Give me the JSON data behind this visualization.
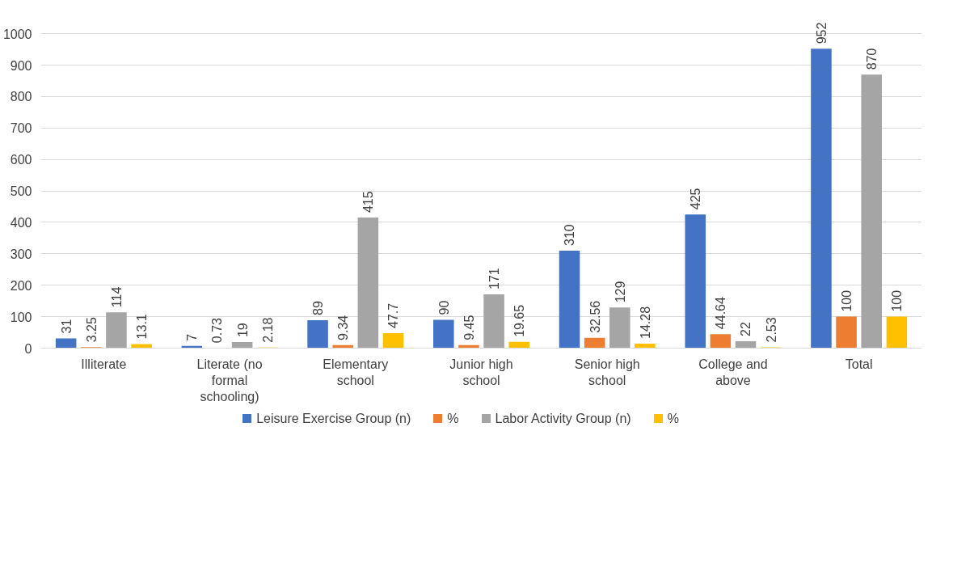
{
  "chart_data": {
    "type": "bar",
    "categories": [
      "Illiterate",
      "Literate (no formal schooling)",
      "Elementary school",
      "Junior high school",
      "Senior high school",
      "College and above",
      "Total"
    ],
    "series": [
      {
        "name": "Leisure Exercise Group (n)",
        "color": "#4472c4",
        "values": [
          31,
          7,
          89,
          90,
          310,
          425,
          952
        ]
      },
      {
        "name": "%",
        "color": "#ed7d31",
        "values": [
          3.25,
          0.73,
          9.34,
          9.45,
          32.56,
          44.64,
          100
        ]
      },
      {
        "name": "Labor Activity Group (n)",
        "color": "#a5a5a5",
        "values": [
          114,
          19,
          415,
          171,
          129,
          22,
          870
        ]
      },
      {
        "name": "%",
        "color": "#ffc000",
        "values": [
          13.1,
          2.18,
          47.7,
          19.65,
          14.28,
          2.53,
          100
        ]
      }
    ],
    "ylim": [
      0,
      1000
    ],
    "yticks": [
      0,
      100,
      200,
      300,
      400,
      500,
      600,
      700,
      800,
      900,
      1000
    ],
    "grid": "y",
    "legend": "bottom",
    "data_labels": true
  }
}
